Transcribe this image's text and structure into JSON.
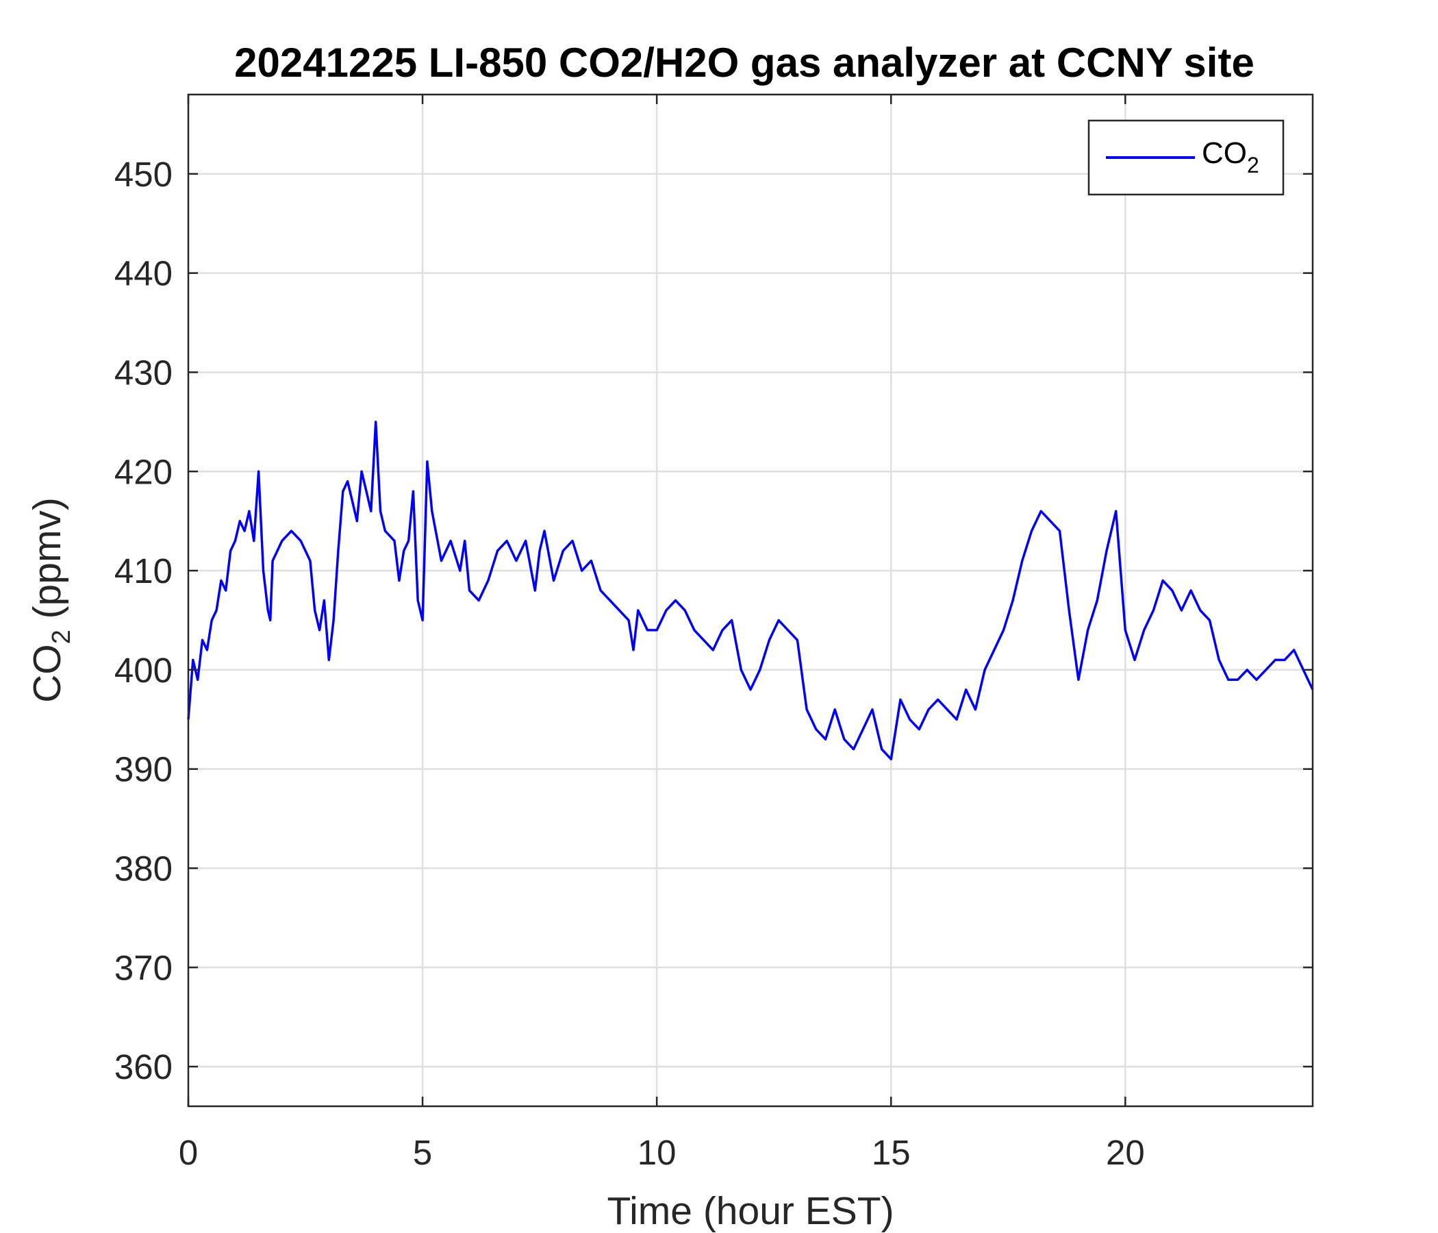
{
  "chart_data": {
    "type": "line",
    "title": "20241225 LI-850 CO2/H2O gas analyzer at CCNY site",
    "xlabel": "Time (hour EST)",
    "ylabel": {
      "main": "CO",
      "sub": "2",
      "unit": " (ppmv)"
    },
    "xlim": [
      0,
      24
    ],
    "ylim": [
      356,
      458
    ],
    "xticks": [
      0,
      5,
      10,
      15,
      20
    ],
    "yticks": [
      360,
      370,
      380,
      390,
      400,
      410,
      420,
      430,
      440,
      450
    ],
    "grid": true,
    "legend": {
      "position": "top-right",
      "entries": [
        {
          "main": "CO",
          "sub": "2"
        }
      ]
    },
    "series": [
      {
        "name": "CO2",
        "color": "#0000ff",
        "x": [
          0,
          0.1,
          0.2,
          0.3,
          0.4,
          0.5,
          0.6,
          0.7,
          0.8,
          0.9,
          1.0,
          1.1,
          1.2,
          1.3,
          1.4,
          1.5,
          1.6,
          1.7,
          1.75,
          1.8,
          1.9,
          2.0,
          2.2,
          2.4,
          2.6,
          2.7,
          2.8,
          2.9,
          3.0,
          3.1,
          3.2,
          3.3,
          3.4,
          3.5,
          3.6,
          3.7,
          3.8,
          3.9,
          4.0,
          4.1,
          4.2,
          4.4,
          4.5,
          4.6,
          4.7,
          4.8,
          4.9,
          5.0,
          5.1,
          5.2,
          5.4,
          5.6,
          5.8,
          5.9,
          6.0,
          6.2,
          6.4,
          6.6,
          6.8,
          7.0,
          7.2,
          7.4,
          7.5,
          7.6,
          7.8,
          8.0,
          8.2,
          8.4,
          8.6,
          8.8,
          9.0,
          9.2,
          9.4,
          9.5,
          9.6,
          9.8,
          10.0,
          10.2,
          10.4,
          10.6,
          10.8,
          11.0,
          11.2,
          11.4,
          11.6,
          11.8,
          12.0,
          12.2,
          12.4,
          12.6,
          12.8,
          13.0,
          13.2,
          13.4,
          13.6,
          13.8,
          14.0,
          14.2,
          14.4,
          14.6,
          14.8,
          15.0,
          15.2,
          15.4,
          15.6,
          15.8,
          16.0,
          16.2,
          16.4,
          16.6,
          16.8,
          17.0,
          17.2,
          17.4,
          17.6,
          17.8,
          18.0,
          18.2,
          18.4,
          18.6,
          18.8,
          19.0,
          19.2,
          19.4,
          19.6,
          19.8,
          20.0,
          20.2,
          20.4,
          20.6,
          20.8,
          21.0,
          21.2,
          21.4,
          21.6,
          21.8,
          22.0,
          22.2,
          22.4,
          22.6,
          22.8,
          23.0,
          23.2,
          23.4,
          23.6,
          23.8,
          24.0
        ],
        "y": [
          395,
          401,
          399,
          403,
          402,
          405,
          406,
          409,
          408,
          412,
          413,
          415,
          414,
          416,
          413,
          420,
          410,
          406,
          405,
          411,
          412,
          413,
          414,
          413,
          411,
          406,
          404,
          407,
          401,
          405,
          412,
          418,
          419,
          417,
          415,
          420,
          418,
          416,
          425,
          416,
          414,
          413,
          409,
          412,
          413,
          418,
          407,
          405,
          421,
          416,
          411,
          413,
          410,
          413,
          408,
          407,
          409,
          412,
          413,
          411,
          413,
          408,
          412,
          414,
          409,
          412,
          413,
          410,
          411,
          408,
          407,
          406,
          405,
          402,
          406,
          404,
          404,
          406,
          407,
          406,
          404,
          403,
          402,
          404,
          405,
          400,
          398,
          400,
          403,
          405,
          404,
          403,
          396,
          394,
          393,
          396,
          393,
          392,
          394,
          396,
          392,
          391,
          397,
          395,
          394,
          396,
          397,
          396,
          395,
          398,
          396,
          400,
          402,
          404,
          407,
          411,
          414,
          416,
          415,
          414,
          406,
          399,
          404,
          407,
          412,
          416,
          404,
          401,
          404,
          406,
          409,
          408,
          406,
          408,
          406,
          405,
          401,
          399,
          399,
          400,
          399,
          400,
          401,
          401,
          402,
          400,
          398
        ]
      }
    ]
  }
}
